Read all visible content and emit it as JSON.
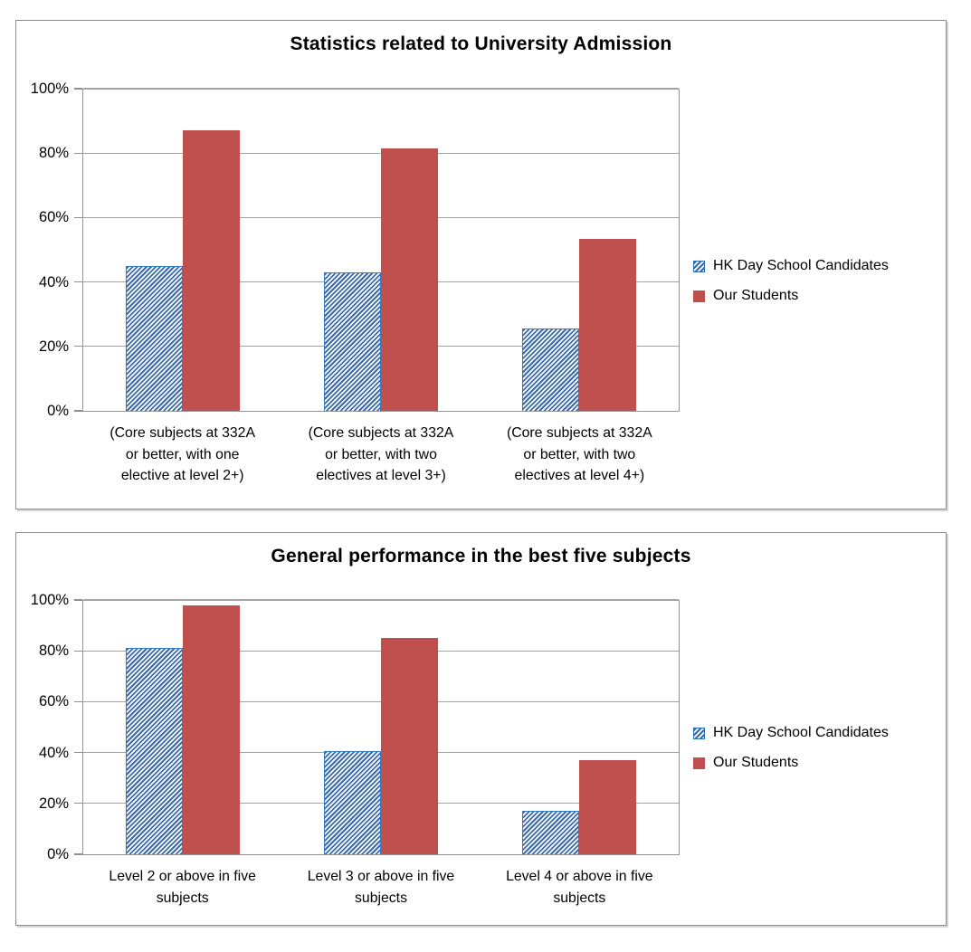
{
  "colors": {
    "hk_stripe_blue": "#3A6BB0",
    "hk_border_blue": "#2F7CC4",
    "ours_red": "#C0504D",
    "gridline_gray": "#A3A3A3",
    "axis_gray": "#949494",
    "panel_border_gray": "#8C8C8C",
    "background": "#FFFFFF"
  },
  "chart_data": [
    {
      "type": "bar",
      "title": "Statistics related to University Admission",
      "categories": [
        "(Core subjects at 332A\nor better, with one\nelective at level 2+)",
        "(Core subjects at 332A\nor better, with two\nelectives at level 3+)",
        "(Core subjects at 332A\nor better, with two\nelectives at level 4+)"
      ],
      "series": [
        {
          "name": "HK Day School Candidates",
          "values": [
            45,
            43,
            25.5
          ],
          "style": "hatched-blue"
        },
        {
          "name": "Our Students",
          "values": [
            87,
            81.5,
            53.5
          ],
          "style": "solid-red"
        }
      ],
      "xlabel": "",
      "ylabel": "",
      "ylim": [
        0,
        100
      ],
      "yticks": [
        "0%",
        "20%",
        "40%",
        "60%",
        "80%",
        "100%"
      ],
      "grid": true,
      "legend_position": "right"
    },
    {
      "type": "bar",
      "title": "General performance in the best  five subjects",
      "categories": [
        "Level 2 or above in five\nsubjects",
        "Level 3 or above in five\nsubjects",
        "Level 4 or above in five\nsubjects"
      ],
      "series": [
        {
          "name": "HK Day School Candidates",
          "values": [
            81,
            40.5,
            17
          ],
          "style": "hatched-blue"
        },
        {
          "name": "Our Students",
          "values": [
            98,
            85,
            37
          ],
          "style": "solid-red"
        }
      ],
      "xlabel": "",
      "ylabel": "",
      "ylim": [
        0,
        100
      ],
      "yticks": [
        "0%",
        "20%",
        "40%",
        "60%",
        "80%",
        "100%"
      ],
      "grid": true,
      "legend_position": "right"
    }
  ]
}
